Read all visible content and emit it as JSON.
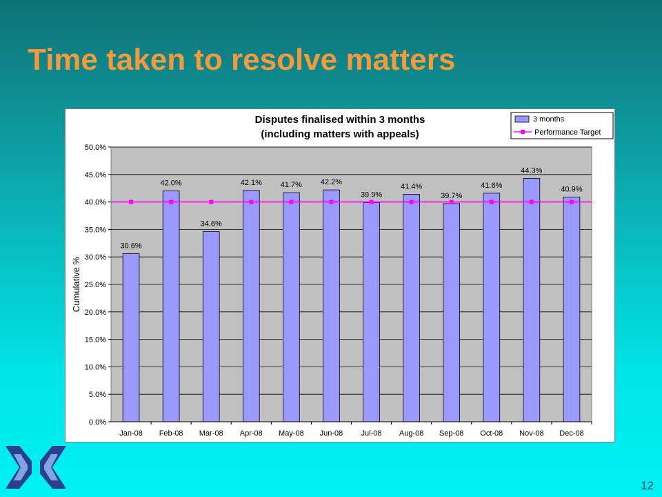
{
  "slide": {
    "title": "Time taken to resolve matters",
    "page_number": "12"
  },
  "colors": {
    "bar_fill": "#9999ff",
    "bar_stroke": "#000000",
    "target_line": "#ff00ff",
    "plot_bg": "#c0c0c0",
    "title_color": "#f39a3c"
  },
  "chart_data": {
    "type": "bar",
    "title_lines": [
      "Disputes finalised within 3 months",
      "(including matters with appeals)"
    ],
    "ylabel": "Cumulative %",
    "xlabel": "",
    "ylim": [
      0,
      50
    ],
    "ytick_step": 5,
    "ytick_labels": [
      "0.0%",
      "5.0%",
      "10.0%",
      "15.0%",
      "20.0%",
      "25.0%",
      "30.0%",
      "35.0%",
      "40.0%",
      "45.0%",
      "50.0%"
    ],
    "grid": "horizontal",
    "legend_position": "top-right",
    "categories": [
      "Jan-08",
      "Feb-08",
      "Mar-08",
      "Apr-08",
      "May-08",
      "Jun-08",
      "Jul-08",
      "Aug-08",
      "Sep-08",
      "Oct-08",
      "Nov-08",
      "Dec-08"
    ],
    "series": [
      {
        "name": "3 months",
        "kind": "bar",
        "values": [
          30.6,
          42.0,
          34.6,
          42.1,
          41.7,
          42.2,
          39.9,
          41.4,
          39.7,
          41.6,
          44.3,
          40.9
        ],
        "labels": [
          "30.6%",
          "42.0%",
          "34.6%",
          "42.1%",
          "41.7%",
          "42.2%",
          "39.9%",
          "41.4%",
          "39.7%",
          "41.6%",
          "44.3%",
          "40.9%"
        ]
      },
      {
        "name": "Performance Target",
        "kind": "line",
        "values": [
          40,
          40,
          40,
          40,
          40,
          40,
          40,
          40,
          40,
          40,
          40,
          40
        ]
      }
    ]
  }
}
